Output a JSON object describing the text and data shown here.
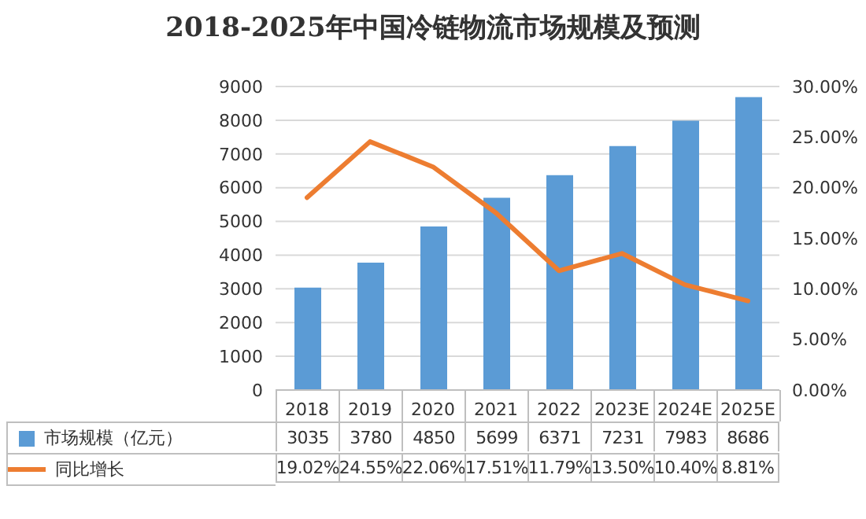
{
  "chart_data": {
    "type": "bar",
    "title": "2018-2025年中国冷链物流市场规模及预测",
    "categories": [
      "2018",
      "2019",
      "2020",
      "2021",
      "2022",
      "2023E",
      "2024E",
      "2025E"
    ],
    "series": [
      {
        "name": "市场规模（亿元）",
        "color": "#5b9bd5",
        "values": [
          3035,
          3780,
          4850,
          5699,
          6371,
          7231,
          7983,
          8686
        ],
        "value_labels": [
          "3035",
          "3780",
          "4850",
          "5699",
          "6371",
          "7231",
          "7983",
          "8686"
        ]
      },
      {
        "name": "同比增长",
        "type": "line",
        "axis": "y2",
        "color": "#ed7d31",
        "values": [
          19.02,
          24.55,
          22.06,
          17.51,
          11.79,
          13.5,
          10.4,
          8.81
        ],
        "value_labels": [
          "19.02%",
          "24.55%",
          "22.06%",
          "17.51%",
          "11.79%",
          "13.50%",
          "10.40%",
          "8.81%"
        ]
      }
    ],
    "ylim": [
      0,
      9000
    ],
    "yticks": [
      0,
      1000,
      2000,
      3000,
      4000,
      5000,
      6000,
      7000,
      8000,
      9000
    ],
    "y2lim": [
      0,
      30
    ],
    "y2ticks": [
      {
        "value": 0,
        "label": "0.00%"
      },
      {
        "value": 5,
        "label": "5.00%"
      },
      {
        "value": 10,
        "label": "10.00%"
      },
      {
        "value": 15,
        "label": "15.00%"
      },
      {
        "value": 20,
        "label": "20.00%"
      },
      {
        "value": 25,
        "label": "25.00%"
      },
      {
        "value": 30,
        "label": "30.00%"
      }
    ],
    "grid": "y",
    "legend": "bottom"
  }
}
